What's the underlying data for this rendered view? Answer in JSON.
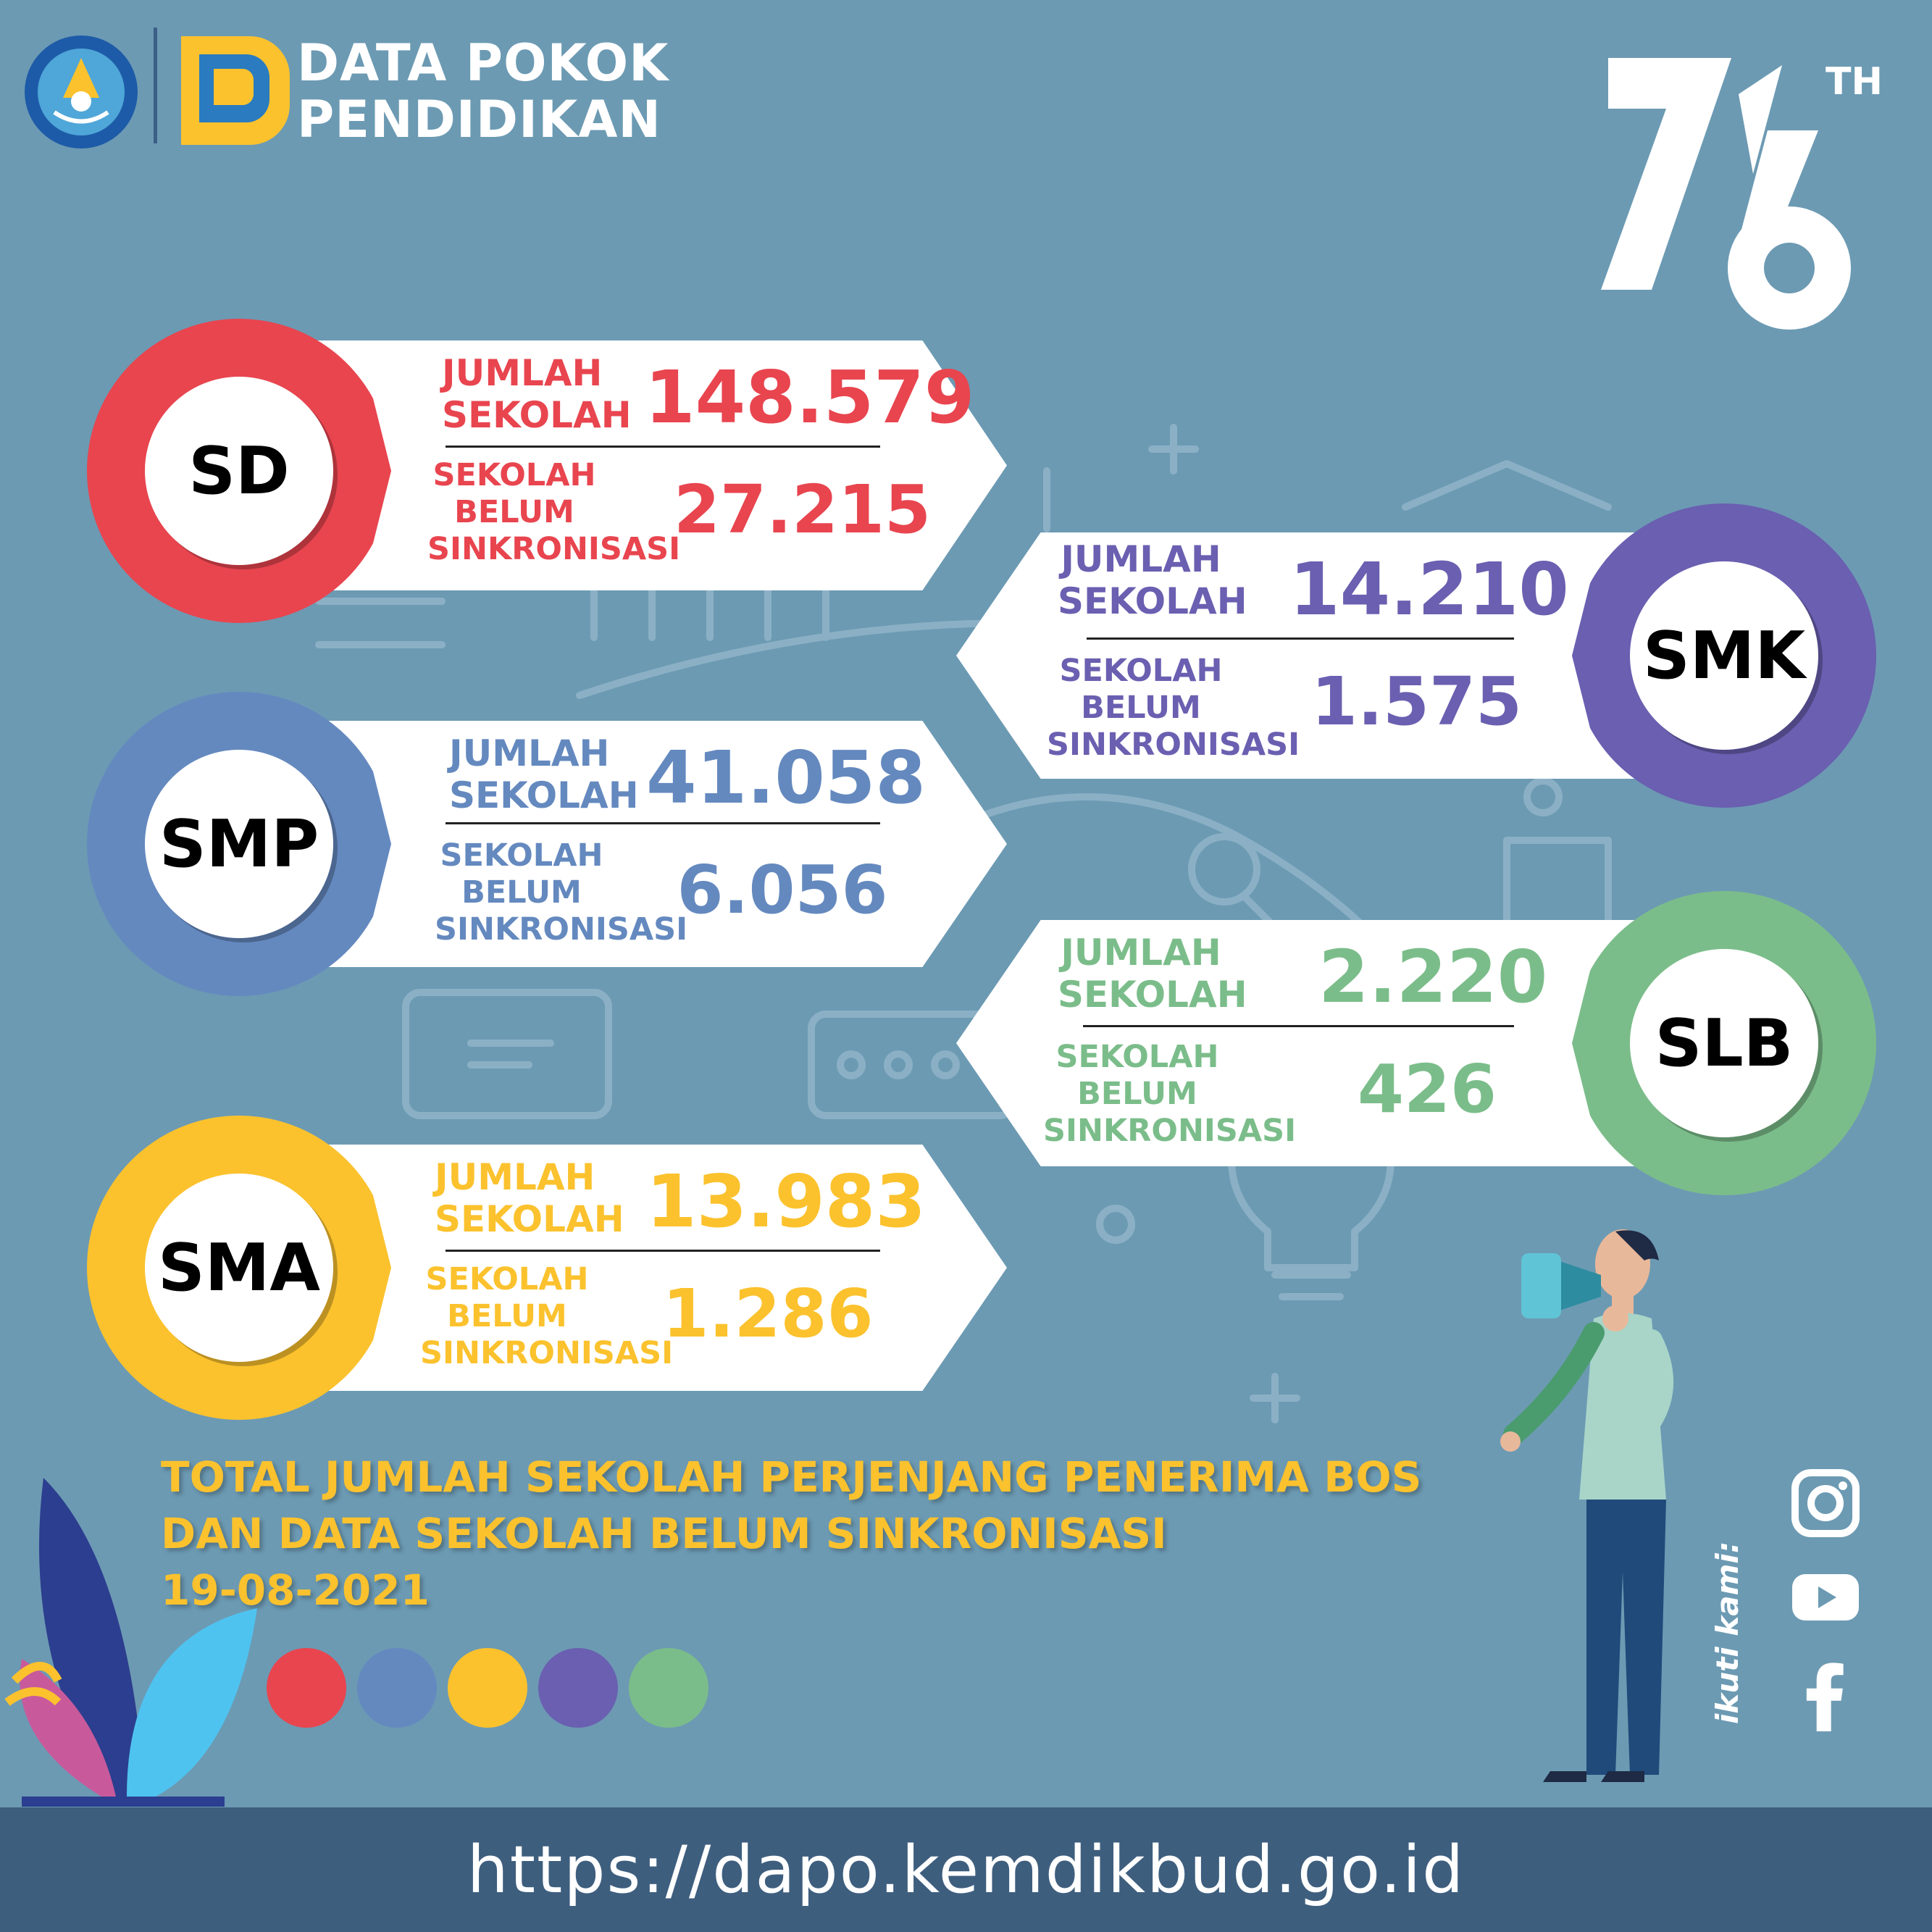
{
  "header": {
    "brand_line1": "DATA POKOK",
    "brand_line2": "PENDIDIKAN",
    "anniversary_number": "76",
    "anniversary_suffix": "TH"
  },
  "colors": {
    "background": "#6c9ab3",
    "sd": "#e8454f",
    "smp": "#6489bf",
    "sma": "#fbc22e",
    "smk": "#6a5fb0",
    "slb": "#7bbd8a",
    "footer": "#3e5e7e"
  },
  "cards": {
    "sd": {
      "badge": "SD",
      "label_total": [
        "JUMLAH",
        "SEKOLAH"
      ],
      "total": "148.579",
      "label_unsynced": [
        "SEKOLAH",
        "BELUM",
        "SINKRONISASI"
      ],
      "unsynced": "27.215"
    },
    "smp": {
      "badge": "SMP",
      "label_total": [
        "JUMLAH",
        "SEKOLAH"
      ],
      "total": "41.058",
      "label_unsynced": [
        "SEKOLAH",
        "BELUM",
        "SINKRONISASI"
      ],
      "unsynced": "6.056"
    },
    "sma": {
      "badge": "SMA",
      "label_total": [
        "JUMLAH",
        "SEKOLAH"
      ],
      "total": "13.983",
      "label_unsynced": [
        "SEKOLAH",
        "BELUM",
        "SINKRONISASI"
      ],
      "unsynced": "1.286"
    },
    "smk": {
      "badge": "SMK",
      "label_total": [
        "JUMLAH",
        "SEKOLAH"
      ],
      "total": "14.210",
      "label_unsynced": [
        "SEKOLAH",
        "BELUM",
        "SINKRONISASI"
      ],
      "unsynced": "1.575"
    },
    "slb": {
      "badge": "SLB",
      "label_total": [
        "JUMLAH",
        "SEKOLAH"
      ],
      "total": "2.220",
      "label_unsynced": [
        "SEKOLAH",
        "BELUM",
        "SINKRONISASI"
      ],
      "unsynced": "426"
    }
  },
  "summary": {
    "line1": "TOTAL JUMLAH SEKOLAH PERJENJANG PENERIMA BOS",
    "line2": "DAN DATA SEKOLAH BELUM SINKRONISASI",
    "date": "19-08-2021"
  },
  "social": {
    "follow_label": "ikuti kami:",
    "icons": [
      "instagram-icon",
      "youtube-icon",
      "facebook-icon"
    ]
  },
  "footer": {
    "url": "https://dapo.kemdikbud.go.id"
  }
}
